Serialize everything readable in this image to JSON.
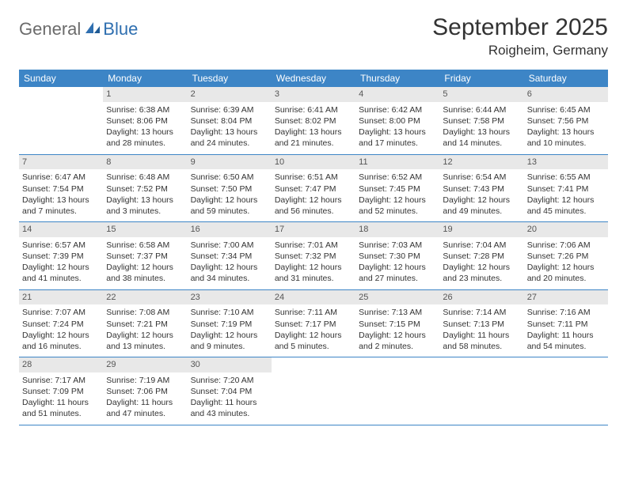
{
  "logo": {
    "part1": "General",
    "part2": "Blue"
  },
  "title": "September 2025",
  "location": "Roigheim, Germany",
  "colors": {
    "header_bg": "#3d85c6",
    "daynum_bg": "#e8e8e8",
    "logo_gray": "#6b6b6b",
    "logo_blue": "#2f6fb0",
    "row_border": "#3d85c6"
  },
  "weekdays": [
    "Sunday",
    "Monday",
    "Tuesday",
    "Wednesday",
    "Thursday",
    "Friday",
    "Saturday"
  ],
  "weeks": [
    [
      null,
      {
        "n": "1",
        "sr": "6:38 AM",
        "ss": "8:06 PM",
        "dl": "13 hours and 28 minutes."
      },
      {
        "n": "2",
        "sr": "6:39 AM",
        "ss": "8:04 PM",
        "dl": "13 hours and 24 minutes."
      },
      {
        "n": "3",
        "sr": "6:41 AM",
        "ss": "8:02 PM",
        "dl": "13 hours and 21 minutes."
      },
      {
        "n": "4",
        "sr": "6:42 AM",
        "ss": "8:00 PM",
        "dl": "13 hours and 17 minutes."
      },
      {
        "n": "5",
        "sr": "6:44 AM",
        "ss": "7:58 PM",
        "dl": "13 hours and 14 minutes."
      },
      {
        "n": "6",
        "sr": "6:45 AM",
        "ss": "7:56 PM",
        "dl": "13 hours and 10 minutes."
      }
    ],
    [
      {
        "n": "7",
        "sr": "6:47 AM",
        "ss": "7:54 PM",
        "dl": "13 hours and 7 minutes."
      },
      {
        "n": "8",
        "sr": "6:48 AM",
        "ss": "7:52 PM",
        "dl": "13 hours and 3 minutes."
      },
      {
        "n": "9",
        "sr": "6:50 AM",
        "ss": "7:50 PM",
        "dl": "12 hours and 59 minutes."
      },
      {
        "n": "10",
        "sr": "6:51 AM",
        "ss": "7:47 PM",
        "dl": "12 hours and 56 minutes."
      },
      {
        "n": "11",
        "sr": "6:52 AM",
        "ss": "7:45 PM",
        "dl": "12 hours and 52 minutes."
      },
      {
        "n": "12",
        "sr": "6:54 AM",
        "ss": "7:43 PM",
        "dl": "12 hours and 49 minutes."
      },
      {
        "n": "13",
        "sr": "6:55 AM",
        "ss": "7:41 PM",
        "dl": "12 hours and 45 minutes."
      }
    ],
    [
      {
        "n": "14",
        "sr": "6:57 AM",
        "ss": "7:39 PM",
        "dl": "12 hours and 41 minutes."
      },
      {
        "n": "15",
        "sr": "6:58 AM",
        "ss": "7:37 PM",
        "dl": "12 hours and 38 minutes."
      },
      {
        "n": "16",
        "sr": "7:00 AM",
        "ss": "7:34 PM",
        "dl": "12 hours and 34 minutes."
      },
      {
        "n": "17",
        "sr": "7:01 AM",
        "ss": "7:32 PM",
        "dl": "12 hours and 31 minutes."
      },
      {
        "n": "18",
        "sr": "7:03 AM",
        "ss": "7:30 PM",
        "dl": "12 hours and 27 minutes."
      },
      {
        "n": "19",
        "sr": "7:04 AM",
        "ss": "7:28 PM",
        "dl": "12 hours and 23 minutes."
      },
      {
        "n": "20",
        "sr": "7:06 AM",
        "ss": "7:26 PM",
        "dl": "12 hours and 20 minutes."
      }
    ],
    [
      {
        "n": "21",
        "sr": "7:07 AM",
        "ss": "7:24 PM",
        "dl": "12 hours and 16 minutes."
      },
      {
        "n": "22",
        "sr": "7:08 AM",
        "ss": "7:21 PM",
        "dl": "12 hours and 13 minutes."
      },
      {
        "n": "23",
        "sr": "7:10 AM",
        "ss": "7:19 PM",
        "dl": "12 hours and 9 minutes."
      },
      {
        "n": "24",
        "sr": "7:11 AM",
        "ss": "7:17 PM",
        "dl": "12 hours and 5 minutes."
      },
      {
        "n": "25",
        "sr": "7:13 AM",
        "ss": "7:15 PM",
        "dl": "12 hours and 2 minutes."
      },
      {
        "n": "26",
        "sr": "7:14 AM",
        "ss": "7:13 PM",
        "dl": "11 hours and 58 minutes."
      },
      {
        "n": "27",
        "sr": "7:16 AM",
        "ss": "7:11 PM",
        "dl": "11 hours and 54 minutes."
      }
    ],
    [
      {
        "n": "28",
        "sr": "7:17 AM",
        "ss": "7:09 PM",
        "dl": "11 hours and 51 minutes."
      },
      {
        "n": "29",
        "sr": "7:19 AM",
        "ss": "7:06 PM",
        "dl": "11 hours and 47 minutes."
      },
      {
        "n": "30",
        "sr": "7:20 AM",
        "ss": "7:04 PM",
        "dl": "11 hours and 43 minutes."
      },
      null,
      null,
      null,
      null
    ]
  ],
  "labels": {
    "sunrise_prefix": "Sunrise: ",
    "sunset_prefix": "Sunset: ",
    "daylight_prefix": "Daylight: "
  }
}
